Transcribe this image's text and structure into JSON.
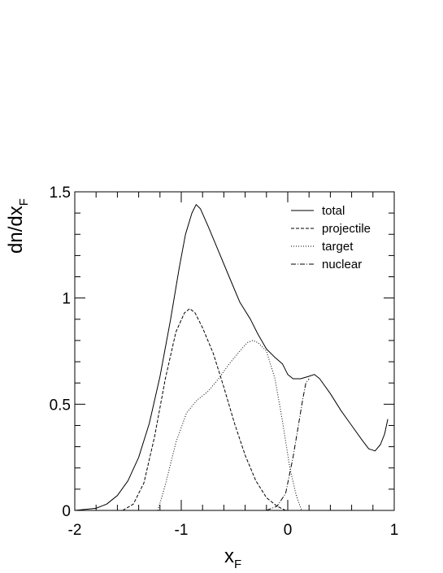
{
  "chart_data": {
    "type": "line",
    "title": "",
    "xlabel": {
      "main": "x",
      "sub": "F"
    },
    "ylabel": {
      "main": "dn/dx",
      "sub": "F"
    },
    "xlim": [
      -2,
      1
    ],
    "ylim": [
      0,
      1.5
    ],
    "xticks": [
      {
        "value": -2,
        "label": "-2"
      },
      {
        "value": -1,
        "label": "-1"
      },
      {
        "value": 0,
        "label": "0"
      },
      {
        "value": 1,
        "label": "1"
      }
    ],
    "yticks": [
      {
        "value": 0,
        "label": "0"
      },
      {
        "value": 0.5,
        "label": "0.5"
      },
      {
        "value": 1,
        "label": "1"
      },
      {
        "value": 1.5,
        "label": "1.5"
      }
    ],
    "grid": false,
    "legend_position": "top-right",
    "series": [
      {
        "name": "total",
        "dash": "solid",
        "points": [
          [
            -2.0,
            0.0
          ],
          [
            -1.8,
            0.01
          ],
          [
            -1.7,
            0.03
          ],
          [
            -1.6,
            0.07
          ],
          [
            -1.5,
            0.14
          ],
          [
            -1.4,
            0.25
          ],
          [
            -1.3,
            0.41
          ],
          [
            -1.2,
            0.63
          ],
          [
            -1.1,
            0.9
          ],
          [
            -1.02,
            1.14
          ],
          [
            -0.96,
            1.3
          ],
          [
            -0.9,
            1.4
          ],
          [
            -0.86,
            1.44
          ],
          [
            -0.82,
            1.42
          ],
          [
            -0.75,
            1.34
          ],
          [
            -0.65,
            1.22
          ],
          [
            -0.55,
            1.1
          ],
          [
            -0.45,
            0.98
          ],
          [
            -0.35,
            0.9
          ],
          [
            -0.28,
            0.83
          ],
          [
            -0.2,
            0.76
          ],
          [
            -0.12,
            0.72
          ],
          [
            -0.05,
            0.69
          ],
          [
            0.0,
            0.64
          ],
          [
            0.05,
            0.62
          ],
          [
            0.12,
            0.62
          ],
          [
            0.19,
            0.63
          ],
          [
            0.25,
            0.64
          ],
          [
            0.3,
            0.62
          ],
          [
            0.4,
            0.55
          ],
          [
            0.5,
            0.47
          ],
          [
            0.6,
            0.4
          ],
          [
            0.7,
            0.33
          ],
          [
            0.76,
            0.29
          ],
          [
            0.82,
            0.28
          ],
          [
            0.87,
            0.31
          ],
          [
            0.91,
            0.36
          ],
          [
            0.94,
            0.43
          ]
        ]
      },
      {
        "name": "projectile",
        "dash": "dashed",
        "points": [
          [
            -1.55,
            0.0
          ],
          [
            -1.45,
            0.03
          ],
          [
            -1.35,
            0.13
          ],
          [
            -1.25,
            0.35
          ],
          [
            -1.15,
            0.62
          ],
          [
            -1.05,
            0.84
          ],
          [
            -0.97,
            0.93
          ],
          [
            -0.92,
            0.95
          ],
          [
            -0.87,
            0.93
          ],
          [
            -0.8,
            0.86
          ],
          [
            -0.7,
            0.74
          ],
          [
            -0.6,
            0.58
          ],
          [
            -0.5,
            0.41
          ],
          [
            -0.4,
            0.26
          ],
          [
            -0.3,
            0.14
          ],
          [
            -0.2,
            0.06
          ],
          [
            -0.1,
            0.02
          ],
          [
            -0.02,
            0.0
          ]
        ]
      },
      {
        "name": "target",
        "dash": "dotted",
        "points": [
          [
            -1.22,
            0.0
          ],
          [
            -1.15,
            0.12
          ],
          [
            -1.05,
            0.32
          ],
          [
            -0.95,
            0.46
          ],
          [
            -0.85,
            0.52
          ],
          [
            -0.75,
            0.56
          ],
          [
            -0.65,
            0.62
          ],
          [
            -0.55,
            0.69
          ],
          [
            -0.45,
            0.75
          ],
          [
            -0.38,
            0.79
          ],
          [
            -0.33,
            0.8
          ],
          [
            -0.28,
            0.79
          ],
          [
            -0.2,
            0.75
          ],
          [
            -0.12,
            0.62
          ],
          [
            -0.05,
            0.42
          ],
          [
            0.02,
            0.2
          ],
          [
            0.08,
            0.07
          ],
          [
            0.13,
            0.0
          ]
        ]
      },
      {
        "name": "nuclear",
        "dash": "dashdot",
        "points": [
          [
            -0.2,
            0.0
          ],
          [
            -0.1,
            0.02
          ],
          [
            -0.02,
            0.08
          ],
          [
            0.05,
            0.25
          ],
          [
            0.1,
            0.4
          ],
          [
            0.14,
            0.52
          ],
          [
            0.17,
            0.6
          ],
          [
            0.2,
            0.62
          ]
        ]
      }
    ]
  }
}
